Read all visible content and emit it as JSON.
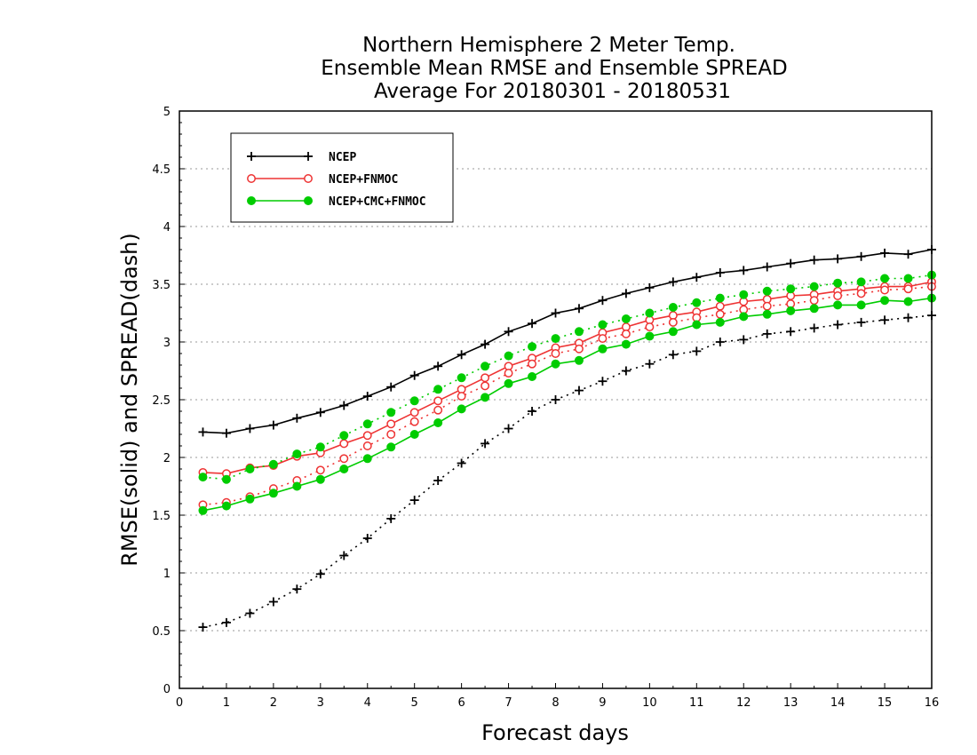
{
  "chart_data": {
    "type": "line",
    "title": [
      "Northern Hemisphere 2 Meter Temp.",
      "Ensemble Mean RMSE and Ensemble SPREAD",
      "Average For 20180301 - 20180531"
    ],
    "xlabel": "Forecast days",
    "ylabel": "RMSE(solid) and SPREAD(dash)",
    "xlim": [
      0,
      16
    ],
    "ylim": [
      0,
      5
    ],
    "xticks": [
      "0",
      "1",
      "2",
      "3",
      "4",
      "5",
      "6",
      "7",
      "8",
      "9",
      "10",
      "11",
      "12",
      "13",
      "14",
      "15",
      "16"
    ],
    "yticks": [
      "0",
      "0.5",
      "1",
      "1.5",
      "2",
      "2.5",
      "3",
      "3.5",
      "4",
      "4.5",
      "5"
    ],
    "grid": "horizontal dotted",
    "legend_position": "top-left",
    "x": [
      0.5,
      1,
      1.5,
      2,
      2.5,
      3,
      3.5,
      4,
      4.5,
      5,
      5.5,
      6,
      6.5,
      7,
      7.5,
      8,
      8.5,
      9,
      9.5,
      10,
      10.5,
      11,
      11.5,
      12,
      12.5,
      13,
      13.5,
      14,
      14.5,
      15,
      15.5,
      16
    ],
    "series": [
      {
        "name": "NCEP",
        "color": "#000000",
        "marker": "plus",
        "rmse": [
          2.22,
          2.21,
          2.25,
          2.28,
          2.34,
          2.39,
          2.45,
          2.53,
          2.61,
          2.71,
          2.79,
          2.89,
          2.98,
          3.09,
          3.16,
          3.25,
          3.29,
          3.36,
          3.42,
          3.47,
          3.52,
          3.56,
          3.6,
          3.62,
          3.65,
          3.68,
          3.71,
          3.72,
          3.74,
          3.77,
          3.76,
          3.8
        ],
        "spread": [
          0.53,
          0.57,
          0.65,
          0.75,
          0.86,
          0.99,
          1.15,
          1.3,
          1.47,
          1.63,
          1.8,
          1.95,
          2.12,
          2.25,
          2.4,
          2.5,
          2.58,
          2.66,
          2.75,
          2.81,
          2.89,
          2.92,
          3.0,
          3.02,
          3.07,
          3.09,
          3.12,
          3.15,
          3.17,
          3.19,
          3.21,
          3.23
        ]
      },
      {
        "name": "NCEP+FNMOC",
        "color": "#ee3333",
        "marker": "open-circle",
        "rmse": [
          1.87,
          1.86,
          1.91,
          1.93,
          2.01,
          2.04,
          2.12,
          2.19,
          2.29,
          2.39,
          2.49,
          2.59,
          2.69,
          2.79,
          2.86,
          2.95,
          2.99,
          3.08,
          3.13,
          3.19,
          3.23,
          3.26,
          3.31,
          3.35,
          3.37,
          3.4,
          3.41,
          3.44,
          3.46,
          3.48,
          3.48,
          3.52
        ],
        "spread": [
          1.59,
          1.61,
          1.66,
          1.73,
          1.8,
          1.89,
          1.99,
          2.1,
          2.2,
          2.31,
          2.41,
          2.53,
          2.62,
          2.73,
          2.81,
          2.9,
          2.94,
          3.03,
          3.07,
          3.13,
          3.17,
          3.21,
          3.24,
          3.28,
          3.31,
          3.33,
          3.36,
          3.4,
          3.42,
          3.45,
          3.46,
          3.48
        ]
      },
      {
        "name": "NCEP+CMC+FNMOC",
        "color": "#00cc00",
        "marker": "filled-circle",
        "rmse": [
          1.54,
          1.58,
          1.64,
          1.69,
          1.75,
          1.81,
          1.9,
          1.99,
          2.09,
          2.2,
          2.3,
          2.42,
          2.52,
          2.64,
          2.7,
          2.81,
          2.84,
          2.94,
          2.98,
          3.05,
          3.09,
          3.15,
          3.17,
          3.22,
          3.24,
          3.27,
          3.29,
          3.32,
          3.32,
          3.36,
          3.35,
          3.38
        ],
        "spread": [
          1.83,
          1.81,
          1.9,
          1.94,
          2.03,
          2.09,
          2.19,
          2.29,
          2.39,
          2.49,
          2.59,
          2.69,
          2.79,
          2.88,
          2.96,
          3.03,
          3.09,
          3.15,
          3.2,
          3.25,
          3.3,
          3.34,
          3.38,
          3.41,
          3.44,
          3.46,
          3.48,
          3.51,
          3.52,
          3.55,
          3.55,
          3.58
        ]
      }
    ]
  }
}
